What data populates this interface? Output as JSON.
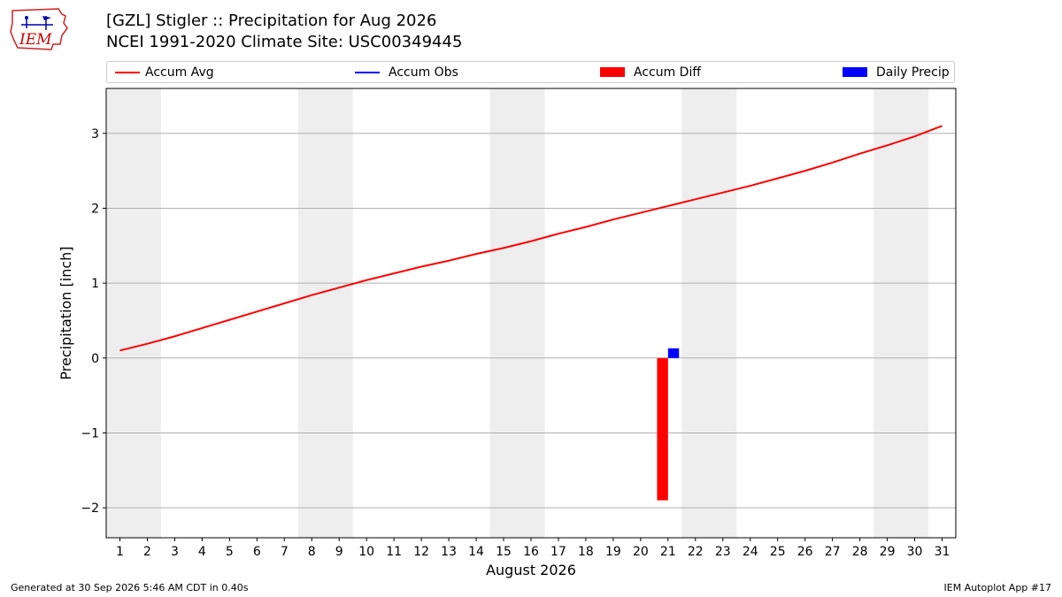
{
  "header": {
    "logo_text": "IEM"
  },
  "footer": {
    "generated": "Generated at 30 Sep 2026 5:46 AM CDT in 0.40s",
    "app": "IEM Autoplot App #17"
  },
  "colors": {
    "avg": "#ff0000",
    "obs": "#0000ff",
    "diff": "#ff0000",
    "daily": "#0000ff",
    "weekend": "#eeeeee",
    "grid": "#b0b0b0"
  },
  "chart_data": {
    "type": "line",
    "title": "[GZL] Stigler :: Precipitation for Aug 2026",
    "subtitle": "NCEI 1991-2020 Climate Site: USC00349445",
    "xlabel": "August 2026",
    "ylabel": "Precipitation [inch]",
    "xlim": [
      0.5,
      31.5
    ],
    "ylim": [
      -2.4,
      3.6
    ],
    "yticks": [
      -2,
      -1,
      0,
      1,
      2,
      3
    ],
    "ytick_labels": [
      "−2",
      "−1",
      "0",
      "1",
      "2",
      "3"
    ],
    "xticks": [
      1,
      2,
      3,
      4,
      5,
      6,
      7,
      8,
      9,
      10,
      11,
      12,
      13,
      14,
      15,
      16,
      17,
      18,
      19,
      20,
      21,
      22,
      23,
      24,
      25,
      26,
      27,
      28,
      29,
      30,
      31
    ],
    "grid": "horizontal",
    "legend_position": "top",
    "weekend_bands": [
      [
        0.5,
        2.5
      ],
      [
        7.5,
        9.5
      ],
      [
        14.5,
        16.5
      ],
      [
        21.5,
        23.5
      ],
      [
        28.5,
        30.5
      ]
    ],
    "legend": [
      "Accum Avg",
      "Accum Obs",
      "Accum Diff",
      "Daily Precip"
    ],
    "accum_avg": {
      "name": "Accum Avg",
      "x": [
        1,
        2,
        3,
        4,
        5,
        6,
        7,
        8,
        9,
        10,
        11,
        12,
        13,
        14,
        15,
        16,
        17,
        18,
        19,
        20,
        21,
        22,
        23,
        24,
        25,
        26,
        27,
        28,
        29,
        30,
        31
      ],
      "values": [
        0.1,
        0.19,
        0.29,
        0.4,
        0.51,
        0.62,
        0.73,
        0.84,
        0.94,
        1.04,
        1.13,
        1.22,
        1.3,
        1.39,
        1.47,
        1.56,
        1.66,
        1.75,
        1.85,
        1.94,
        2.03,
        2.12,
        2.21,
        2.3,
        2.4,
        2.5,
        2.61,
        2.73,
        2.84,
        2.96,
        3.1
      ]
    },
    "accum_obs": {
      "name": "Accum Obs",
      "x": [],
      "values": []
    },
    "accum_diff": {
      "name": "Accum Diff",
      "x": [
        20.8
      ],
      "values": [
        -1.9
      ]
    },
    "daily_precip": {
      "name": "Daily Precip",
      "x": [
        21.2
      ],
      "values": [
        0.13
      ]
    }
  }
}
